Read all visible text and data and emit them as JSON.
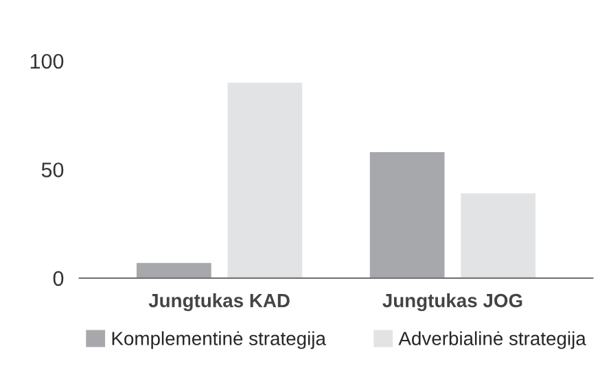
{
  "chart_data": {
    "type": "bar",
    "categories": [
      "Jungtukas KAD",
      "Jungtukas JOG"
    ],
    "series": [
      {
        "name": "Komplementinė strategija",
        "color": "#a7a8ab",
        "values": [
          7,
          58
        ]
      },
      {
        "name": "Adverbialinė strategija",
        "color": "#e2e3e5",
        "values": [
          90,
          39
        ]
      }
    ],
    "ylim": [
      0,
      100
    ],
    "yticks": [
      0,
      50,
      100
    ],
    "grid": false,
    "legend": "bottom"
  }
}
